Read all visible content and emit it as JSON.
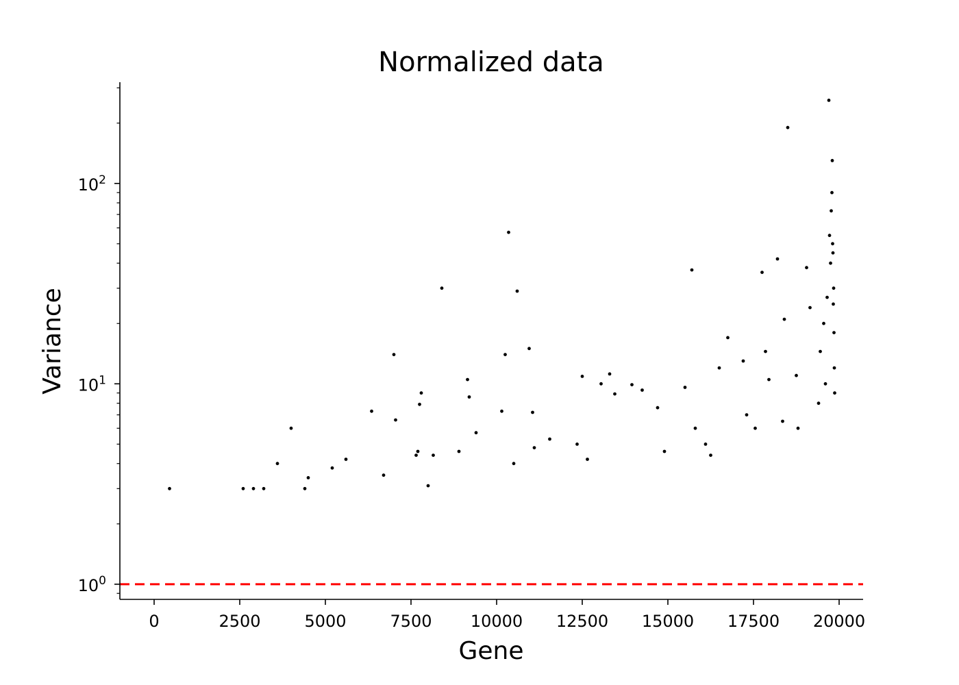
{
  "chart_data": {
    "type": "scatter",
    "title": "Normalized data",
    "xlabel": "Gene",
    "ylabel": "Variance",
    "xlim": [
      -1000,
      20700
    ],
    "ylim": [
      0.84,
      320
    ],
    "yscale": "log",
    "grid": false,
    "legend": "none",
    "x_ticks": [
      0,
      2500,
      5000,
      7500,
      10000,
      12500,
      15000,
      17500,
      20000
    ],
    "x_tick_labels": [
      "0",
      "2500",
      "5000",
      "7500",
      "10000",
      "12500",
      "15000",
      "17500",
      "20000"
    ],
    "y_tick_labels": [
      {
        "base": "10",
        "exp": "0",
        "value": 1
      },
      {
        "base": "10",
        "exp": "1",
        "value": 10
      },
      {
        "base": "10",
        "exp": "2",
        "value": 100
      }
    ],
    "reference_line": {
      "y": 1,
      "color": "#ff0000",
      "style": "dashed"
    },
    "marker_color": "#000000",
    "series": [
      {
        "x": [
          450,
          2600,
          2900,
          3200,
          3600,
          4000,
          4400,
          4500,
          5200,
          5600,
          6350,
          6700,
          7000,
          7050,
          7650,
          7700,
          7750,
          7800,
          8000,
          8150,
          8400,
          8900,
          9150,
          9200,
          9400,
          10150,
          10250,
          10350,
          10500,
          10600,
          10950,
          11050,
          11100,
          11550,
          12350,
          12500,
          12650,
          13050,
          13300,
          13450,
          13950,
          14250,
          14700,
          14900,
          15500,
          15700,
          15800,
          16100,
          16250,
          16500,
          16750,
          17200,
          17300,
          17550,
          17750,
          17850,
          17950,
          18200,
          18350,
          18400,
          18500,
          18750,
          18800,
          19050,
          19150,
          19400,
          19450,
          19550,
          19600,
          19650,
          19700,
          19720,
          19750,
          19770,
          19790,
          19800,
          19810,
          19820,
          19830,
          19840,
          19850,
          19860,
          19870
        ],
        "y": [
          3.0,
          3.0,
          3.0,
          3.0,
          4.0,
          6.0,
          3.0,
          3.4,
          3.8,
          4.2,
          7.3,
          3.5,
          14.0,
          6.6,
          4.4,
          4.6,
          7.9,
          9.0,
          3.1,
          4.4,
          30.0,
          4.6,
          10.5,
          8.6,
          5.7,
          7.3,
          14.0,
          57.0,
          4.0,
          29.0,
          15.0,
          7.2,
          4.8,
          5.3,
          5.0,
          10.9,
          4.2,
          10.0,
          11.2,
          8.9,
          9.9,
          9.3,
          7.6,
          4.6,
          9.6,
          37.0,
          6.0,
          5.0,
          4.4,
          12.0,
          17.0,
          13.0,
          7.0,
          6.0,
          36.0,
          14.5,
          10.5,
          42.0,
          6.5,
          21.0,
          190.0,
          11.0,
          6.0,
          38.0,
          24.0,
          8.0,
          14.5,
          20.0,
          10.0,
          27.0,
          260.0,
          55.0,
          40.0,
          73.0,
          90.0,
          130.0,
          50.0,
          45.0,
          25.0,
          30.0,
          18.0,
          12.0,
          9.0
        ]
      }
    ]
  }
}
